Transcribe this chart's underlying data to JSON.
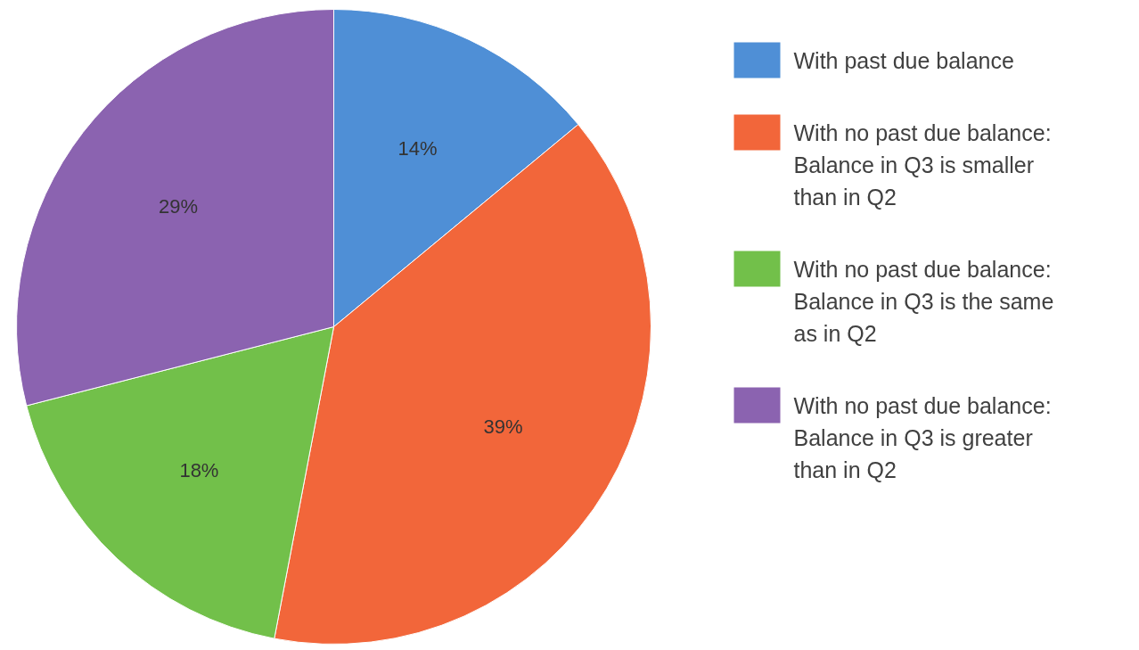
{
  "chart_data": {
    "type": "pie",
    "categories": [
      "With past due balance",
      "With no past due balance: Balance in Q3 is smaller than in Q2",
      "With no past due balance: Balance in Q3 is the same as in Q2",
      "With no past due balance: Balance in Q3 is greater than in Q2"
    ],
    "values": [
      14,
      39,
      18,
      29
    ],
    "colors": [
      "#4f8fd6",
      "#f2663a",
      "#72c04a",
      "#8b63b0"
    ],
    "value_labels": [
      "14%",
      "39%",
      "18%",
      "29%"
    ],
    "legend": "right"
  }
}
